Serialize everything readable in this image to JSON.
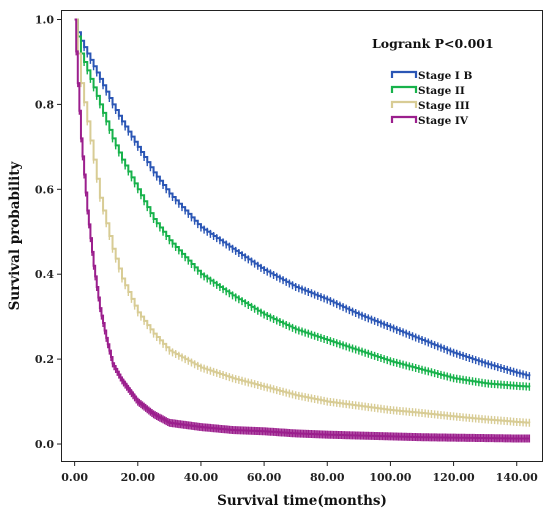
{
  "chart_data": {
    "type": "line",
    "title": "",
    "xlabel": "Survival time(months)",
    "ylabel": "Survival probability",
    "annotation": "Logrank P<0.001",
    "xlim": [
      -4,
      148
    ],
    "ylim": [
      -0.04,
      1.02
    ],
    "x_ticks": [
      0,
      20,
      40,
      60,
      80,
      100,
      120,
      140
    ],
    "x_tick_labels": [
      "0.00",
      "20.00",
      "40.00",
      "60.00",
      "80.00",
      "100.00",
      "120.00",
      "140.00"
    ],
    "y_ticks": [
      0,
      0.2,
      0.4,
      0.6,
      0.8,
      1.0
    ],
    "y_tick_labels": [
      "0.0",
      "0.2",
      "0.4",
      "0.6",
      "0.8",
      "1.0"
    ],
    "grid": false,
    "legend_position": "top-right",
    "step": true,
    "censor_marks": true,
    "x": [
      0,
      1,
      2,
      4,
      6,
      8,
      10,
      12,
      15,
      20,
      25,
      30,
      35,
      40,
      50,
      60,
      70,
      80,
      90,
      100,
      110,
      120,
      130,
      140,
      144
    ],
    "series": [
      {
        "name": "Stage I B",
        "color": "#2b56b5",
        "values": [
          1.0,
          0.97,
          0.95,
          0.92,
          0.89,
          0.86,
          0.83,
          0.8,
          0.76,
          0.7,
          0.64,
          0.59,
          0.55,
          0.51,
          0.46,
          0.41,
          0.37,
          0.34,
          0.305,
          0.275,
          0.245,
          0.215,
          0.19,
          0.168,
          0.16
        ]
      },
      {
        "name": "Stage II",
        "color": "#17b24b",
        "values": [
          1.0,
          0.96,
          0.92,
          0.88,
          0.84,
          0.8,
          0.76,
          0.72,
          0.67,
          0.6,
          0.53,
          0.48,
          0.44,
          0.4,
          0.35,
          0.305,
          0.27,
          0.245,
          0.22,
          0.195,
          0.175,
          0.155,
          0.143,
          0.137,
          0.135
        ]
      },
      {
        "name": "Stage III",
        "color": "#d8cc95",
        "values": [
          1.0,
          0.92,
          0.85,
          0.76,
          0.67,
          0.58,
          0.52,
          0.46,
          0.39,
          0.31,
          0.26,
          0.22,
          0.2,
          0.18,
          0.155,
          0.135,
          0.115,
          0.1,
          0.09,
          0.08,
          0.073,
          0.065,
          0.058,
          0.052,
          0.05
        ]
      },
      {
        "name": "Stage IV",
        "color": "#9b1f8d",
        "values": [
          1.0,
          0.85,
          0.72,
          0.55,
          0.42,
          0.32,
          0.25,
          0.19,
          0.15,
          0.1,
          0.07,
          0.05,
          0.045,
          0.04,
          0.033,
          0.03,
          0.025,
          0.022,
          0.02,
          0.018,
          0.016,
          0.015,
          0.014,
          0.013,
          0.013
        ]
      }
    ]
  }
}
